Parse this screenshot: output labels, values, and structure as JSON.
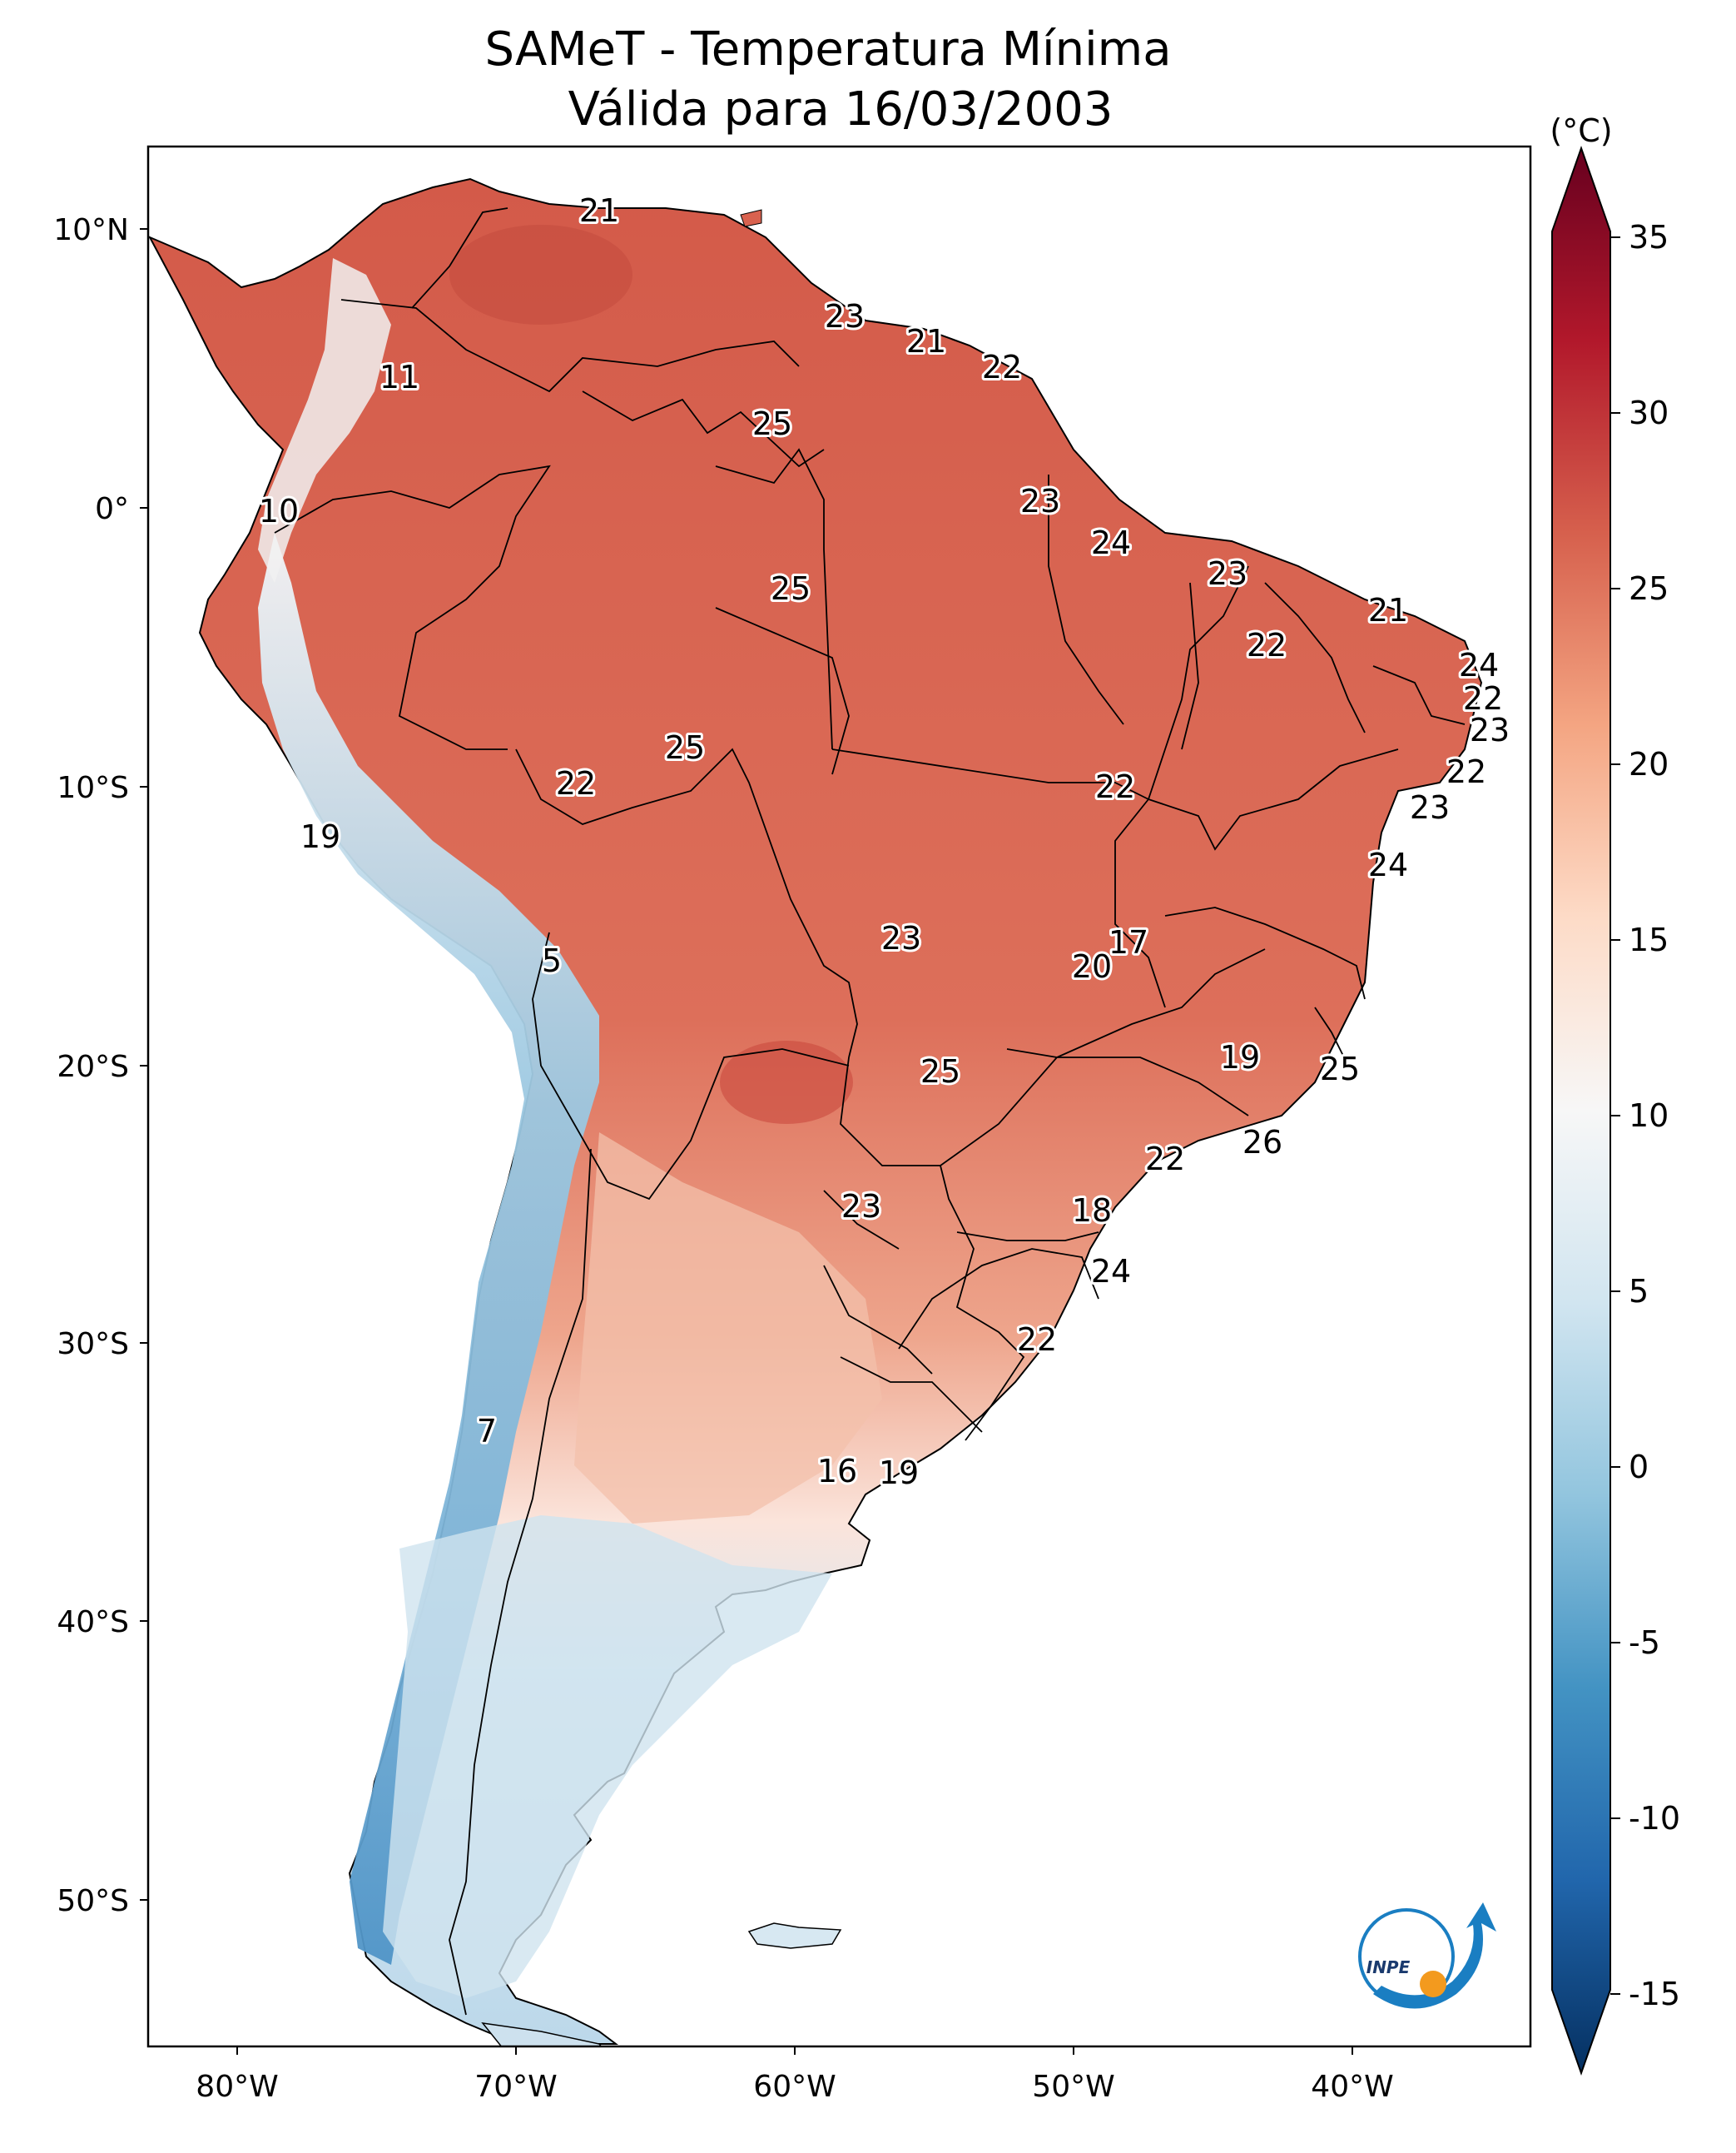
{
  "title": {
    "line1": "SAMeT - Temperatura Mínima",
    "line2": "Válida para 16/03/2003"
  },
  "axes": {
    "lat_ticks": [
      "10°N",
      "0°",
      "10°S",
      "20°S",
      "30°S",
      "40°S",
      "50°S"
    ],
    "lon_ticks": [
      "80°W",
      "70°W",
      "60°W",
      "50°W",
      "40°W"
    ]
  },
  "colorbar": {
    "unit": "(°C)",
    "ticks": [
      "35",
      "30",
      "25",
      "20",
      "15",
      "10",
      "5",
      "0",
      "-5",
      "-10",
      "-15"
    ],
    "colors": {
      "c35": "#67001f",
      "c30": "#b2182b",
      "c25": "#d6604d",
      "c20": "#f4a582",
      "c15": "#fddbc7",
      "c10": "#f7f7f7",
      "c5": "#d1e5f0",
      "c0": "#92c5de",
      "cm5": "#4393c3",
      "cm10": "#2166ac",
      "cm15": "#053061"
    }
  },
  "labels": [
    {
      "text": "21"
    },
    {
      "text": "23"
    },
    {
      "text": "21"
    },
    {
      "text": "22"
    },
    {
      "text": "11"
    },
    {
      "text": "25"
    },
    {
      "text": "10"
    },
    {
      "text": "23"
    },
    {
      "text": "24"
    },
    {
      "text": "25"
    },
    {
      "text": "23"
    },
    {
      "text": "21"
    },
    {
      "text": "22"
    },
    {
      "text": "24"
    },
    {
      "text": "22"
    },
    {
      "text": "23"
    },
    {
      "text": "25"
    },
    {
      "text": "22"
    },
    {
      "text": "22"
    },
    {
      "text": "22"
    },
    {
      "text": "19"
    },
    {
      "text": "23"
    },
    {
      "text": "24"
    },
    {
      "text": "23"
    },
    {
      "text": "17"
    },
    {
      "text": "5"
    },
    {
      "text": "20"
    },
    {
      "text": "25"
    },
    {
      "text": "19"
    },
    {
      "text": "25"
    },
    {
      "text": "26"
    },
    {
      "text": "22"
    },
    {
      "text": "23"
    },
    {
      "text": "18"
    },
    {
      "text": "24"
    },
    {
      "text": "22"
    },
    {
      "text": "7"
    },
    {
      "text": "16"
    },
    {
      "text": "19"
    }
  ],
  "logo": {
    "text": "INPE"
  }
}
